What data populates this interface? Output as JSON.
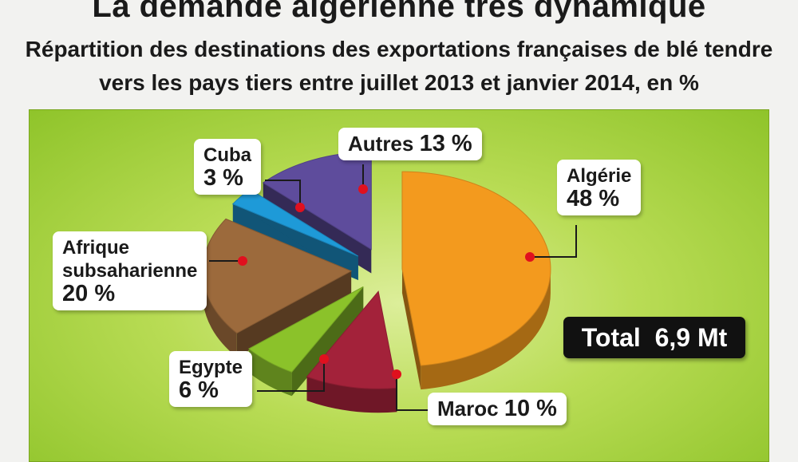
{
  "header": {
    "title": "La demande algérienne très dynamique",
    "subtitle_line1": "Répartition des destinations des exportations françaises de blé tendre",
    "subtitle_line2": "vers les pays tiers entre juillet 2013 et janvier 2014, en %"
  },
  "total": {
    "label": "Total",
    "value": "6,9 Mt"
  },
  "colors": {
    "Algérie": "#f39a1e",
    "Maroc": "#a3223a",
    "Egypte": "#8bc22a",
    "Afrique subsaharienne": "#9c6a3c",
    "Cuba": "#1e9ad8",
    "Autres": "#5e4c9c",
    "connector": "#1a1a1a",
    "dot": "#e0101e"
  },
  "chart_data": {
    "type": "pie",
    "title": "Répartition des destinations des exportations françaises de blé tendre vers les pays tiers entre juillet 2013 et janvier 2014, en %",
    "unit": "%",
    "slices": [
      {
        "name": "Algérie",
        "value": 48,
        "label_name": "Algérie",
        "label_value": "48 %"
      },
      {
        "name": "Maroc",
        "value": 10,
        "label_name": "Maroc",
        "label_value": "10 %"
      },
      {
        "name": "Egypte",
        "value": 6,
        "label_name": "Egypte",
        "label_value": "6 %"
      },
      {
        "name": "Afrique subsaharienne",
        "value": 20,
        "label_name_line1": "Afrique",
        "label_name_line2": "subsaharienne",
        "label_value": "20 %"
      },
      {
        "name": "Cuba",
        "value": 3,
        "label_name": "Cuba",
        "label_value": "3 %"
      },
      {
        "name": "Autres",
        "value": 13,
        "label_name": "Autres",
        "label_value": "13 %"
      }
    ],
    "legend": "none",
    "style": "exploded-3d"
  }
}
